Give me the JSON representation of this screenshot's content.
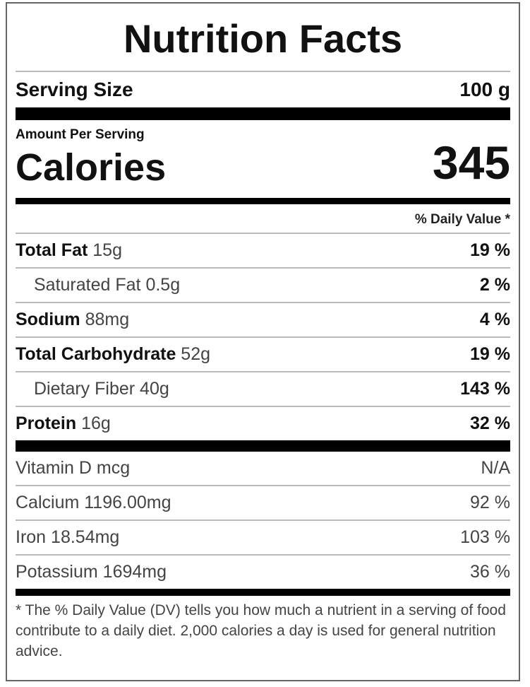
{
  "title": "Nutrition Facts",
  "serving": {
    "label": "Serving Size",
    "value": "100 g"
  },
  "amount_per_serving": "Amount Per Serving",
  "calories": {
    "label": "Calories",
    "value": "345"
  },
  "daily_value_header": "% Daily Value *",
  "nutrients": [
    {
      "name": "Total Fat",
      "amount": "15g",
      "dv": "19 %",
      "indent": false
    },
    {
      "name": "Saturated Fat",
      "amount": "0.5g",
      "dv": "2 %",
      "indent": true
    },
    {
      "name": "Sodium",
      "amount": "88mg",
      "dv": "4 %",
      "indent": false
    },
    {
      "name": "Total Carbohydrate",
      "amount": "52g",
      "dv": "19 %",
      "indent": false
    },
    {
      "name": "Dietary Fiber",
      "amount": "40g",
      "dv": "143 %",
      "indent": true
    },
    {
      "name": "Protein",
      "amount": "16g",
      "dv": "32 %",
      "indent": false
    }
  ],
  "vitamins": [
    {
      "name": "Vitamin D",
      "amount": "mcg",
      "dv": "N/A"
    },
    {
      "name": "Calcium",
      "amount": "1196.00mg",
      "dv": "92 %"
    },
    {
      "name": "Iron",
      "amount": "18.54mg",
      "dv": "103 %"
    },
    {
      "name": "Potassium",
      "amount": "1694mg",
      "dv": "36 %"
    }
  ],
  "footnote": "* The % Daily Value (DV) tells you how much a nutrient in a serving of food contribute to a daily diet. 2,000 calories a day is used for general nutrition advice."
}
